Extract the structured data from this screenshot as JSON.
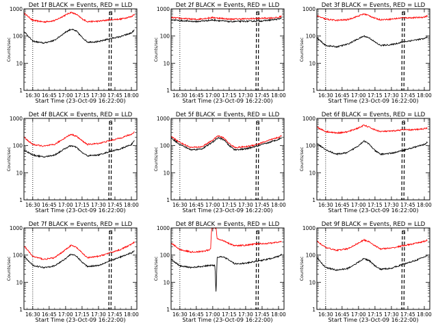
{
  "figure": {
    "time_axis_label": "Start Time (23-Oct-09 16:22:00)"
  },
  "chart_data": [
    {
      "type": "line",
      "title": "Det 1f BLACK = Events, RED = LLD",
      "ylabel": "Counts/sec",
      "xlabel": "Start Time (23-Oct-09 16:22:00)",
      "scale": "log",
      "ylim": [
        1,
        1000
      ],
      "xlim": [
        "16:22",
        "18:05"
      ],
      "xticks": [
        "16:30",
        "16:45",
        "17:00",
        "17:15",
        "17:30",
        "17:45",
        "18:00"
      ],
      "yticks": [
        "1",
        "10",
        "100",
        "1000"
      ],
      "markers": {
        "dotted": "16:30",
        "dashed": [
          "17:40",
          "17:42"
        ]
      },
      "marker_label": "S",
      "series": [
        {
          "color": "#ff0000",
          "x": [
            "16:22",
            "16:30",
            "16:40",
            "16:50",
            "17:00",
            "17:05",
            "17:10",
            "17:15",
            "17:20",
            "17:30",
            "17:40",
            "17:50",
            "18:00",
            "18:03"
          ],
          "values": [
            700,
            380,
            330,
            370,
            600,
            750,
            620,
            430,
            340,
            350,
            400,
            420,
            520,
            650
          ]
        },
        {
          "color": "#000000",
          "x": [
            "16:22",
            "16:30",
            "16:40",
            "16:50",
            "17:00",
            "17:05",
            "17:10",
            "17:15",
            "17:20",
            "17:30",
            "17:40",
            "17:50",
            "18:00",
            "18:03"
          ],
          "values": [
            150,
            65,
            55,
            70,
            140,
            180,
            150,
            90,
            60,
            62,
            80,
            95,
            130,
            170
          ]
        }
      ]
    },
    {
      "type": "line",
      "title": "Det 2f BLACK = Events, RED = LLD",
      "ylabel": "Counts/sec",
      "xlabel": "Start Time (23-Oct-09 16:22:00)",
      "scale": "log",
      "ylim": [
        1,
        1000
      ],
      "xlim": [
        "16:22",
        "18:05"
      ],
      "xticks": [
        "16:30",
        "16:45",
        "17:00",
        "17:15",
        "17:30",
        "17:45",
        "18:00"
      ],
      "yticks": [
        "1",
        "10",
        "100",
        "1000"
      ],
      "markers": {
        "dotted": "16:30",
        "dashed": [
          "17:40",
          "17:42"
        ]
      },
      "marker_label": "S",
      "series": [
        {
          "color": "#ff0000",
          "x": [
            "16:22",
            "16:30",
            "16:45",
            "17:00",
            "17:15",
            "17:30",
            "17:45",
            "18:00",
            "18:03"
          ],
          "values": [
            480,
            450,
            410,
            480,
            420,
            430,
            450,
            480,
            560
          ]
        },
        {
          "color": "#000000",
          "x": [
            "16:22",
            "16:30",
            "16:45",
            "17:00",
            "17:15",
            "17:30",
            "17:45",
            "18:00",
            "18:03"
          ],
          "values": [
            400,
            370,
            340,
            390,
            340,
            350,
            360,
            420,
            480
          ]
        }
      ]
    },
    {
      "type": "line",
      "title": "Det 3f BLACK = Events, RED = LLD",
      "ylabel": "Counts/sec",
      "xlabel": "Start Time (23-Oct-09 16:22:00)",
      "scale": "log",
      "ylim": [
        1,
        1000
      ],
      "xlim": [
        "16:22",
        "18:05"
      ],
      "xticks": [
        "16:30",
        "16:45",
        "17:00",
        "17:15",
        "17:30",
        "17:45",
        "18:00"
      ],
      "yticks": [
        "1",
        "10",
        "100",
        "1000"
      ],
      "markers": {
        "dotted": "16:30",
        "dashed": [
          "17:40",
          "17:42"
        ]
      },
      "marker_label": "S",
      "series": [
        {
          "color": "#ff0000",
          "x": [
            "16:22",
            "16:30",
            "16:40",
            "16:50",
            "17:00",
            "17:05",
            "17:10",
            "17:15",
            "17:20",
            "17:30",
            "17:40",
            "17:50",
            "18:00",
            "18:03"
          ],
          "values": [
            550,
            420,
            380,
            400,
            550,
            650,
            560,
            450,
            400,
            420,
            470,
            470,
            500,
            560
          ]
        },
        {
          "color": "#000000",
          "x": [
            "16:22",
            "16:30",
            "16:40",
            "16:50",
            "17:00",
            "17:05",
            "17:10",
            "17:15",
            "17:20",
            "17:30",
            "17:40",
            "17:50",
            "18:00",
            "18:03"
          ],
          "values": [
            85,
            45,
            40,
            50,
            80,
            100,
            85,
            60,
            45,
            48,
            60,
            70,
            80,
            95
          ]
        }
      ]
    },
    {
      "type": "line",
      "title": "Det 4f BLACK = Events, RED = LLD",
      "ylabel": "Counts/sec",
      "xlabel": "Start Time (23-Oct-09 16:22:00)",
      "scale": "log",
      "ylim": [
        1,
        1000
      ],
      "xlim": [
        "16:22",
        "18:05"
      ],
      "xticks": [
        "16:30",
        "16:45",
        "17:00",
        "17:15",
        "17:30",
        "17:45",
        "18:00"
      ],
      "yticks": [
        "1",
        "10",
        "100",
        "1000"
      ],
      "markers": {
        "dotted": "16:30",
        "dashed": [
          "17:40",
          "17:42"
        ]
      },
      "marker_label": "S",
      "series": [
        {
          "color": "#ff0000",
          "x": [
            "16:22",
            "16:30",
            "16:40",
            "16:50",
            "17:00",
            "17:05",
            "17:10",
            "17:15",
            "17:20",
            "17:30",
            "17:40",
            "17:50",
            "18:00",
            "18:03"
          ],
          "values": [
            200,
            110,
            95,
            110,
            200,
            260,
            220,
            150,
            110,
            120,
            150,
            190,
            260,
            320
          ]
        },
        {
          "color": "#000000",
          "x": [
            "16:22",
            "16:30",
            "16:40",
            "16:50",
            "17:00",
            "17:05",
            "17:10",
            "17:15",
            "17:20",
            "17:30",
            "17:40",
            "17:50",
            "18:00",
            "18:03"
          ],
          "values": [
            70,
            45,
            38,
            45,
            80,
            100,
            85,
            55,
            42,
            45,
            60,
            75,
            110,
            150
          ]
        }
      ]
    },
    {
      "type": "line",
      "title": "Det 5f BLACK = Events, RED = LLD",
      "ylabel": "Counts/sec",
      "xlabel": "Start Time (23-Oct-09 16:22:00)",
      "scale": "log",
      "ylim": [
        1,
        1000
      ],
      "xlim": [
        "16:22",
        "18:05"
      ],
      "xticks": [
        "16:30",
        "16:45",
        "17:00",
        "17:15",
        "17:30",
        "17:45",
        "18:00"
      ],
      "yticks": [
        "1",
        "10",
        "100",
        "1000"
      ],
      "markers": {
        "dotted": "16:30",
        "dashed": [
          "17:40",
          "17:42"
        ]
      },
      "marker_label": "S",
      "series": [
        {
          "color": "#ff0000",
          "x": [
            "16:22",
            "16:30",
            "16:40",
            "16:50",
            "17:00",
            "17:05",
            "17:10",
            "17:15",
            "17:20",
            "17:30",
            "17:40",
            "17:50",
            "18:00",
            "18:03"
          ],
          "values": [
            220,
            130,
            85,
            90,
            160,
            230,
            190,
            120,
            85,
            90,
            110,
            150,
            200,
            230
          ]
        },
        {
          "color": "#000000",
          "x": [
            "16:22",
            "16:30",
            "16:40",
            "16:50",
            "17:00",
            "17:05",
            "17:10",
            "17:15",
            "17:20",
            "17:30",
            "17:40",
            "17:50",
            "18:00",
            "18:03"
          ],
          "values": [
            190,
            110,
            70,
            75,
            135,
            195,
            165,
            100,
            70,
            75,
            95,
            125,
            170,
            200
          ]
        }
      ]
    },
    {
      "type": "line",
      "title": "Det 6f BLACK = Events, RED = LLD",
      "ylabel": "Counts/sec",
      "xlabel": "Start Time (23-Oct-09 16:22:00)",
      "scale": "log",
      "ylim": [
        1,
        1000
      ],
      "xlim": [
        "16:22",
        "18:05"
      ],
      "xticks": [
        "16:30",
        "16:45",
        "17:00",
        "17:15",
        "17:30",
        "17:45",
        "18:00"
      ],
      "yticks": [
        "1",
        "10",
        "100",
        "1000"
      ],
      "markers": {
        "dotted": "16:30",
        "dashed": [
          "17:40",
          "17:42"
        ]
      },
      "marker_label": "S",
      "series": [
        {
          "color": "#ff0000",
          "x": [
            "16:22",
            "16:30",
            "16:40",
            "16:50",
            "17:00",
            "17:05",
            "17:10",
            "17:15",
            "17:20",
            "17:30",
            "17:40",
            "17:50",
            "18:00",
            "18:03"
          ],
          "values": [
            480,
            330,
            290,
            320,
            450,
            560,
            470,
            380,
            330,
            340,
            380,
            380,
            420,
            460
          ]
        },
        {
          "color": "#000000",
          "x": [
            "16:22",
            "16:30",
            "16:40",
            "16:50",
            "17:00",
            "17:05",
            "17:10",
            "17:15",
            "17:20",
            "17:30",
            "17:40",
            "17:50",
            "18:00",
            "18:03"
          ],
          "values": [
            120,
            70,
            48,
            55,
            100,
            150,
            110,
            65,
            48,
            52,
            65,
            85,
            110,
            135
          ]
        }
      ]
    },
    {
      "type": "line",
      "title": "Det 7f BLACK = Events, RED = LLD",
      "ylabel": "Counts/sec",
      "xlabel": "Start Time (23-Oct-09 16:22:00)",
      "scale": "log",
      "ylim": [
        1,
        1000
      ],
      "xlim": [
        "16:22",
        "18:05"
      ],
      "xticks": [
        "16:30",
        "16:45",
        "17:00",
        "17:15",
        "17:30",
        "17:45",
        "18:00"
      ],
      "yticks": [
        "1",
        "10",
        "100",
        "1000"
      ],
      "markers": {
        "dotted": "16:30",
        "dashed": [
          "17:40",
          "17:42"
        ]
      },
      "marker_label": "S",
      "series": [
        {
          "color": "#ff0000",
          "x": [
            "16:22",
            "16:30",
            "16:40",
            "16:50",
            "17:00",
            "17:05",
            "17:10",
            "17:15",
            "17:20",
            "17:30",
            "17:40",
            "17:50",
            "18:00",
            "18:03"
          ],
          "values": [
            220,
            90,
            70,
            80,
            160,
            230,
            190,
            120,
            80,
            90,
            120,
            160,
            250,
            300
          ]
        },
        {
          "color": "#000000",
          "x": [
            "16:22",
            "16:30",
            "16:40",
            "16:50",
            "17:00",
            "17:05",
            "17:10",
            "17:15",
            "17:20",
            "17:30",
            "17:40",
            "17:50",
            "18:00",
            "18:03"
          ],
          "values": [
            90,
            42,
            35,
            40,
            75,
            110,
            90,
            55,
            38,
            42,
            60,
            85,
            120,
            150
          ]
        }
      ]
    },
    {
      "type": "line",
      "title": "Det 8f BLACK = Events, RED = LLD",
      "ylabel": "Counts/sec",
      "xlabel": "Start Time (23-Oct-09 16:22:00)",
      "scale": "log",
      "ylim": [
        1,
        1000
      ],
      "xlim": [
        "16:22",
        "18:05"
      ],
      "xticks": [
        "16:30",
        "16:45",
        "17:00",
        "17:15",
        "17:30",
        "17:45",
        "18:00"
      ],
      "yticks": [
        "1",
        "10",
        "100",
        "1000"
      ],
      "markers": {
        "dotted": "16:30",
        "dashed": [
          "17:40",
          "17:42"
        ]
      },
      "marker_label": "S",
      "series": [
        {
          "color": "#ff0000",
          "x": [
            "16:22",
            "16:30",
            "16:40",
            "16:50",
            "16:58",
            "16:59",
            "17:03",
            "17:04",
            "17:08",
            "17:10",
            "17:15",
            "17:20",
            "17:30",
            "17:40",
            "17:50",
            "18:00",
            "18:03"
          ],
          "values": [
            280,
            160,
            130,
            135,
            160,
            1000,
            1000,
            400,
            350,
            340,
            270,
            220,
            230,
            260,
            270,
            300,
            320
          ]
        },
        {
          "color": "#000000",
          "x": [
            "16:22",
            "16:30",
            "16:40",
            "16:50",
            "16:58",
            "17:02",
            "17:03",
            "17:04",
            "17:08",
            "17:10",
            "17:15",
            "17:20",
            "17:30",
            "17:40",
            "17:50",
            "18:00",
            "18:03"
          ],
          "values": [
            70,
            40,
            35,
            38,
            42,
            42,
            4,
            80,
            90,
            85,
            65,
            48,
            50,
            60,
            70,
            90,
            110
          ]
        }
      ]
    },
    {
      "type": "line",
      "title": "Det 9f BLACK = Events, RED = LLD",
      "ylabel": "Counts/sec",
      "xlabel": "Start Time (23-Oct-09 16:22:00)",
      "scale": "log",
      "ylim": [
        1,
        1000
      ],
      "xlim": [
        "16:22",
        "18:05"
      ],
      "xticks": [
        "16:30",
        "16:45",
        "17:00",
        "17:15",
        "17:30",
        "17:45",
        "18:00"
      ],
      "yticks": [
        "1",
        "10",
        "100",
        "1000"
      ],
      "markers": {
        "dotted": "16:30",
        "dashed": [
          "17:40",
          "17:42"
        ]
      },
      "marker_label": "S",
      "series": [
        {
          "color": "#ff0000",
          "x": [
            "16:22",
            "16:30",
            "16:40",
            "16:50",
            "17:00",
            "17:05",
            "17:10",
            "17:15",
            "17:20",
            "17:30",
            "17:40",
            "17:50",
            "18:00",
            "18:03"
          ],
          "values": [
            330,
            190,
            150,
            170,
            280,
            360,
            310,
            220,
            170,
            180,
            220,
            260,
            320,
            360
          ]
        },
        {
          "color": "#000000",
          "x": [
            "16:22",
            "16:30",
            "16:40",
            "16:50",
            "17:00",
            "17:05",
            "17:10",
            "17:15",
            "17:20",
            "17:30",
            "17:40",
            "17:50",
            "18:00",
            "18:03"
          ],
          "values": [
            80,
            35,
            28,
            32,
            55,
            75,
            62,
            40,
            30,
            33,
            45,
            60,
            85,
            100
          ]
        }
      ]
    }
  ]
}
